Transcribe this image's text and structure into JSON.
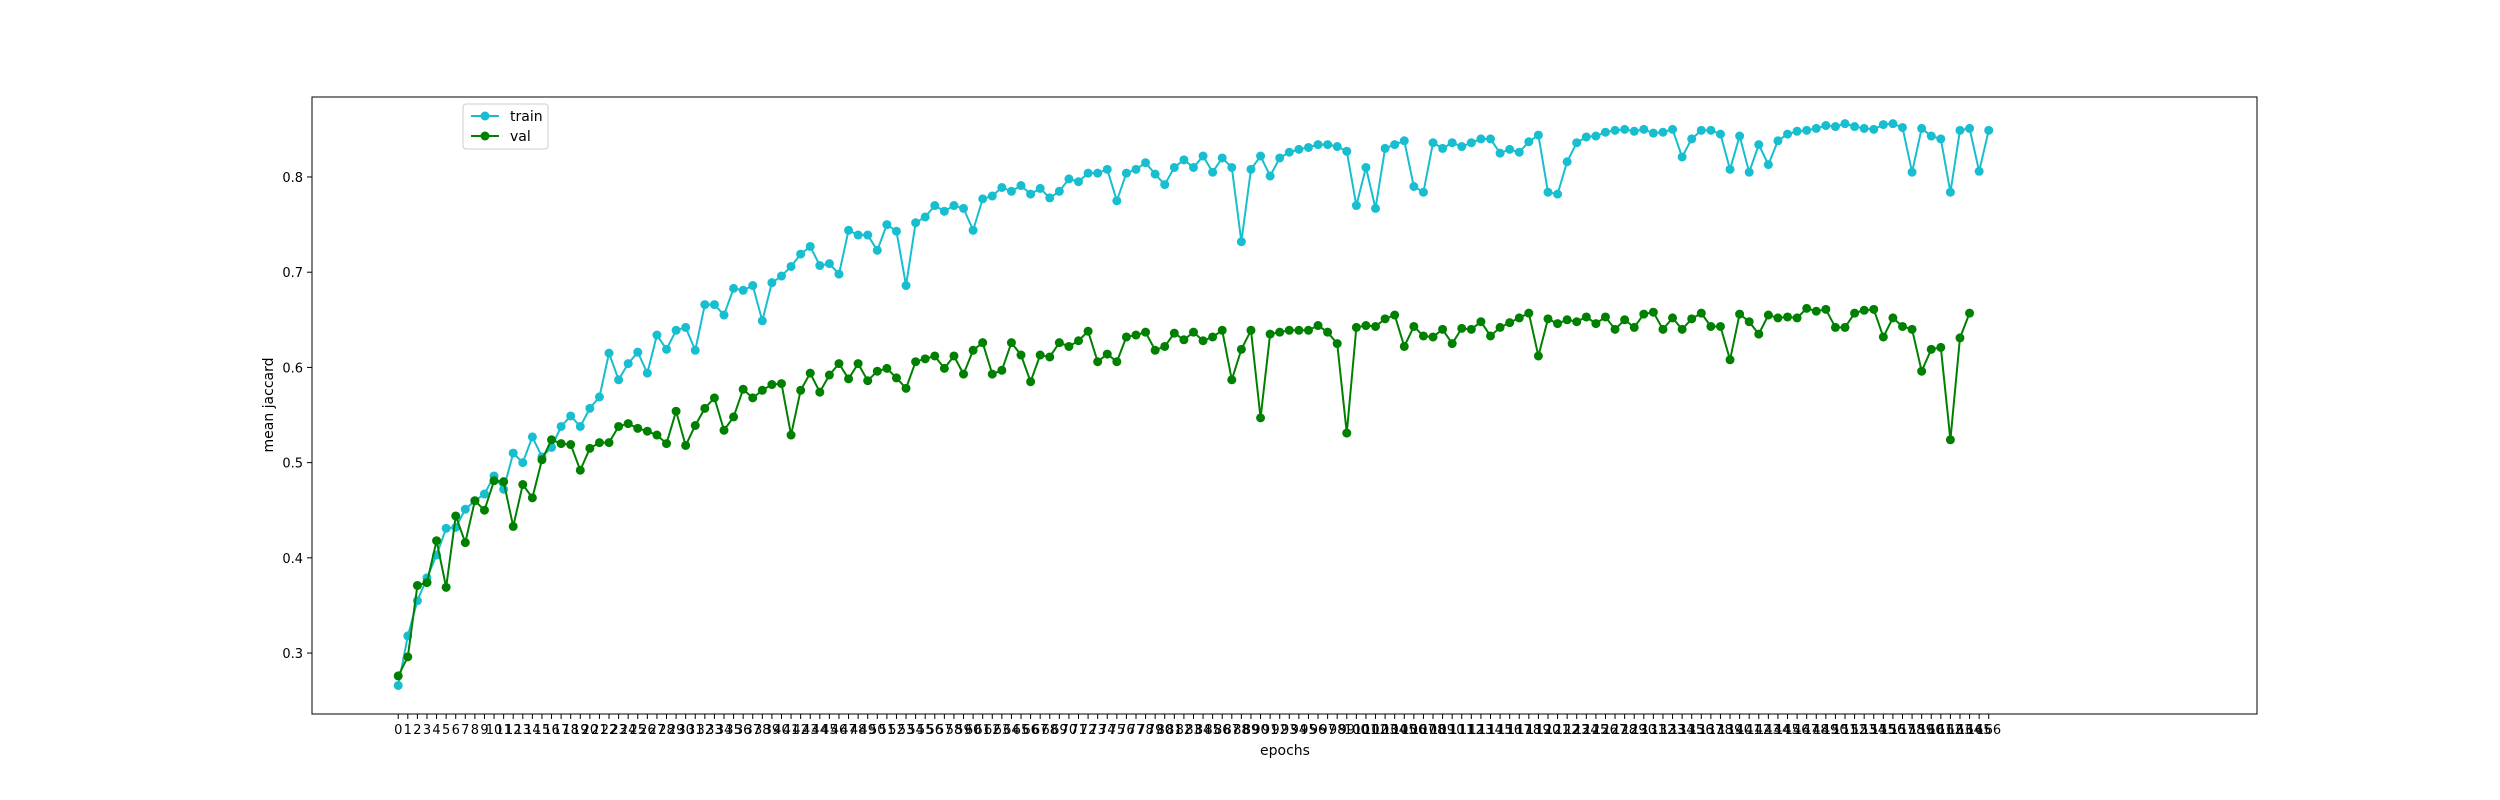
{
  "chart_data": {
    "type": "line",
    "xlabel": "epochs",
    "ylabel": "mean jaccard",
    "xlim": [
      -9,
      194
    ],
    "ylim": [
      0.236,
      0.884
    ],
    "yticks": [
      0.3,
      0.4,
      0.5,
      0.6,
      0.7,
      0.8
    ],
    "legend_position": "top-left",
    "grid": false,
    "series": [
      {
        "name": "train",
        "color": "#17becf",
        "values": [
          0.266,
          0.318,
          0.355,
          0.379,
          0.403,
          0.431,
          0.432,
          0.451,
          0.46,
          0.467,
          0.486,
          0.472,
          0.51,
          0.5,
          0.527,
          0.506,
          0.516,
          0.538,
          0.549,
          0.538,
          0.557,
          0.569,
          0.615,
          0.587,
          0.604,
          0.616,
          0.594,
          0.634,
          0.619,
          0.639,
          0.642,
          0.618,
          0.666,
          0.666,
          0.655,
          0.683,
          0.681,
          0.686,
          0.649,
          0.689,
          0.696,
          0.706,
          0.719,
          0.727,
          0.707,
          0.709,
          0.698,
          0.744,
          0.739,
          0.739,
          0.723,
          0.75,
          0.743,
          0.686,
          0.752,
          0.758,
          0.77,
          0.764,
          0.77,
          0.767,
          0.744,
          0.777,
          0.78,
          0.789,
          0.785,
          0.791,
          0.782,
          0.788,
          0.778,
          0.785,
          0.798,
          0.795,
          0.804,
          0.804,
          0.808,
          0.775,
          0.804,
          0.808,
          0.815,
          0.803,
          0.792,
          0.81,
          0.818,
          0.81,
          0.822,
          0.805,
          0.82,
          0.81,
          0.732,
          0.808,
          0.822,
          0.801,
          0.82,
          0.826,
          0.829,
          0.831,
          0.834,
          0.834,
          0.832,
          0.827,
          0.77,
          0.81,
          0.767,
          0.83,
          0.834,
          0.838,
          0.79,
          0.784,
          0.836,
          0.83,
          0.836,
          0.832,
          0.836,
          0.84,
          0.84,
          0.825,
          0.829,
          0.826,
          0.837,
          0.844,
          0.784,
          0.782,
          0.816,
          0.836,
          0.842,
          0.843,
          0.847,
          0.849,
          0.85,
          0.848,
          0.85,
          0.846,
          0.847,
          0.85,
          0.821,
          0.84,
          0.849,
          0.849,
          0.845,
          0.808,
          0.843,
          0.805,
          0.834,
          0.813,
          0.838,
          0.845,
          0.848,
          0.849,
          0.851,
          0.854,
          0.853,
          0.856,
          0.853,
          0.851,
          0.85,
          0.855,
          0.856,
          0.852,
          0.805,
          0.851,
          0.843,
          0.84,
          0.784,
          0.849,
          0.851,
          0.806,
          0.849
        ]
      },
      {
        "name": "val",
        "color": "#008000",
        "values": [
          0.276,
          0.296,
          0.371,
          0.374,
          0.418,
          0.369,
          0.444,
          0.416,
          0.46,
          0.45,
          0.481,
          0.48,
          0.433,
          0.477,
          0.463,
          0.503,
          0.524,
          0.52,
          0.519,
          0.492,
          0.515,
          0.521,
          0.521,
          0.538,
          0.541,
          0.536,
          0.533,
          0.529,
          0.52,
          0.554,
          0.518,
          0.539,
          0.557,
          0.568,
          0.534,
          0.548,
          0.577,
          0.568,
          0.576,
          0.582,
          0.583,
          0.529,
          0.576,
          0.594,
          0.574,
          0.592,
          0.604,
          0.588,
          0.604,
          0.586,
          0.596,
          0.599,
          0.589,
          0.578,
          0.606,
          0.609,
          0.612,
          0.599,
          0.612,
          0.593,
          0.618,
          0.626,
          0.593,
          0.597,
          0.626,
          0.613,
          0.585,
          0.613,
          0.611,
          0.626,
          0.622,
          0.628,
          0.638,
          0.606,
          0.614,
          0.606,
          0.632,
          0.634,
          0.637,
          0.618,
          0.622,
          0.636,
          0.629,
          0.637,
          0.628,
          0.632,
          0.639,
          0.587,
          0.619,
          0.639,
          0.547,
          0.635,
          0.637,
          0.639,
          0.639,
          0.639,
          0.644,
          0.637,
          0.625,
          0.531,
          0.642,
          0.644,
          0.643,
          0.651,
          0.655,
          0.622,
          0.643,
          0.633,
          0.632,
          0.64,
          0.625,
          0.641,
          0.64,
          0.648,
          0.633,
          0.642,
          0.647,
          0.652,
          0.657,
          0.612,
          0.651,
          0.646,
          0.65,
          0.648,
          0.653,
          0.646,
          0.653,
          0.64,
          0.65,
          0.642,
          0.656,
          0.658,
          0.64,
          0.652,
          0.64,
          0.651,
          0.657,
          0.643,
          0.643,
          0.608,
          0.656,
          0.648,
          0.635,
          0.655,
          0.652,
          0.653,
          0.652,
          0.662,
          0.659,
          0.661,
          0.642,
          0.642,
          0.657,
          0.66,
          0.661,
          0.632,
          0.652,
          0.643,
          0.64,
          0.596,
          0.619,
          0.621,
          0.524,
          0.631,
          0.657
        ]
      }
    ]
  }
}
